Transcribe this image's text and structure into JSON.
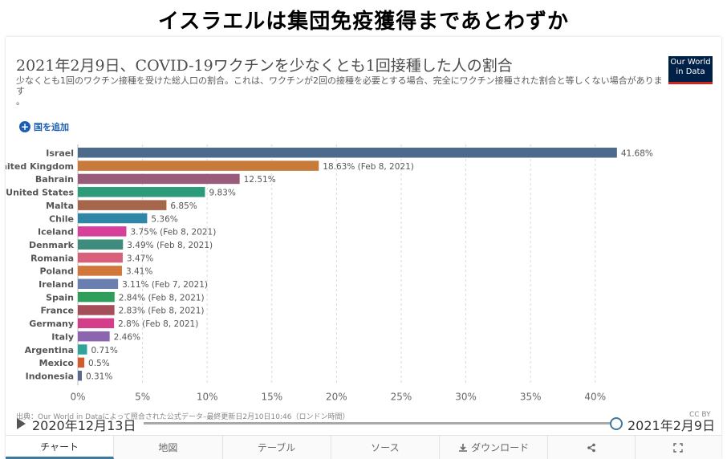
{
  "headline": "イスラエルは集団免疫獲得まであとわずか",
  "logo": {
    "line1": "Our World",
    "line2": "in Data"
  },
  "add_country": "国を追加",
  "source_text": "出典：Our World in Dataによって照合された公式データ–最終更新日2月10日10:46（ロンドン時間）",
  "license": "CC BY",
  "timeline": {
    "start": "2020年12月13日",
    "end": "2021年2月9日"
  },
  "tabs": [
    {
      "label": "チャート",
      "icon": ""
    },
    {
      "label": "地図",
      "icon": ""
    },
    {
      "label": "テーブル",
      "icon": ""
    },
    {
      "label": "ソース",
      "icon": ""
    },
    {
      "label": "ダウンロード",
      "icon": "download-icon"
    },
    {
      "label": "",
      "icon": "share-icon"
    },
    {
      "label": "",
      "icon": "fullscreen-icon"
    }
  ],
  "chart_data": {
    "type": "bar",
    "orientation": "horizontal",
    "title": "2021年2月9日、COVID-19ワクチンを少なくとも1回接種した人の割合",
    "subtitle": "少なくとも1回のワクチン接種を受けた総人口の割合。これは、ワクチンが2回の接種を必要とする場合、完全にワクチン接種された割合と等しくない場合があります",
    "subtitle_tail": "。",
    "xlim": [
      0,
      42
    ],
    "xticks": [
      0,
      5,
      10,
      15,
      20,
      25,
      30,
      35,
      40
    ],
    "xtick_labels": [
      "0%",
      "5%",
      "10%",
      "15%",
      "20%",
      "25%",
      "30%",
      "35%",
      "40%"
    ],
    "grid": true,
    "categories": [
      "Israel",
      "United Kingdom",
      "Bahrain",
      "United States",
      "Malta",
      "Chile",
      "Iceland",
      "Denmark",
      "Romania",
      "Poland",
      "Ireland",
      "Spain",
      "France",
      "Germany",
      "Italy",
      "Argentina",
      "Mexico",
      "Indonesia"
    ],
    "values": [
      41.68,
      18.63,
      12.51,
      9.83,
      6.85,
      5.36,
      3.75,
      3.49,
      3.47,
      3.41,
      3.11,
      2.84,
      2.83,
      2.8,
      2.46,
      0.71,
      0.5,
      0.31
    ],
    "labels": [
      "41.68%",
      "18.63% (Feb 8, 2021)",
      "12.51%",
      "9.83%",
      "6.85%",
      "5.36%",
      "3.75% (Feb 8, 2021)",
      "3.49% (Feb 8, 2021)",
      "3.47%",
      "3.41%",
      "3.11% (Feb 7, 2021)",
      "2.84% (Feb 8, 2021)",
      "2.83% (Feb 8, 2021)",
      "2.8% (Feb 8, 2021)",
      "2.46%",
      "0.71%",
      "0.5%",
      "0.31%"
    ],
    "colors": [
      "#4c6a8c",
      "#c87a3a",
      "#9a5b7a",
      "#2b9b7a",
      "#a5664c",
      "#2f86a6",
      "#d4409a",
      "#3d8c7d",
      "#d8607a",
      "#d2773a",
      "#6a7fb0",
      "#2e9e5a",
      "#a64d5a",
      "#d33d8a",
      "#8c64b0",
      "#2fa59a",
      "#d35a2a",
      "#5a6a8a"
    ]
  }
}
